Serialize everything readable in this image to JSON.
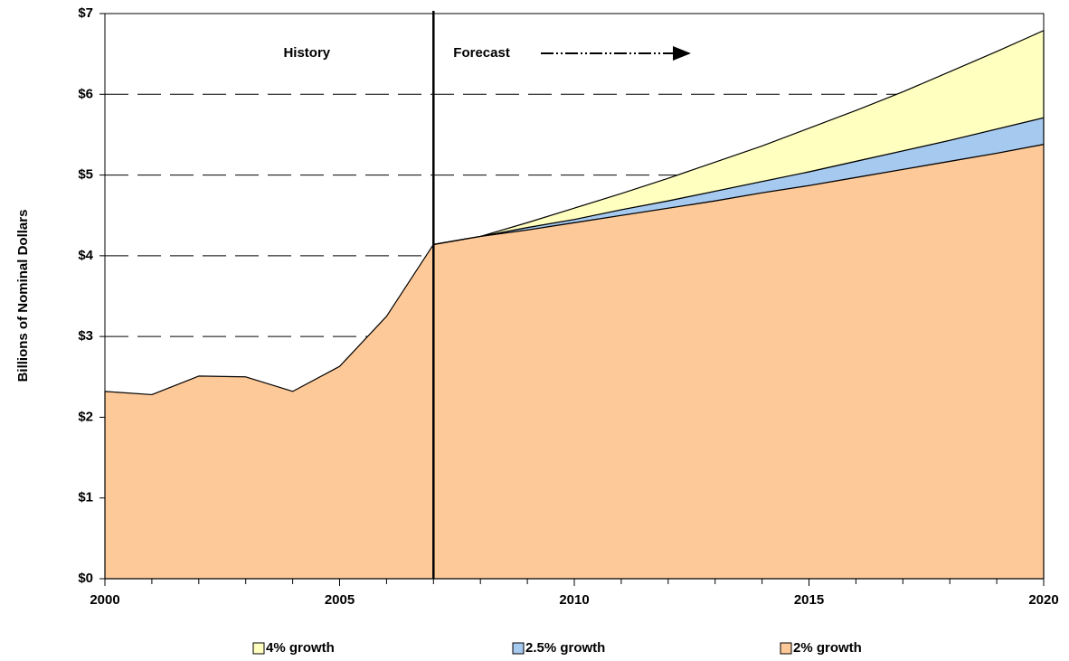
{
  "chart_data": {
    "type": "stacked_area",
    "y_label": "Billions of Nominal Dollars",
    "x": [
      2000,
      2001,
      2002,
      2003,
      2004,
      2005,
      2006,
      2007,
      2008,
      2009,
      2010,
      2011,
      2012,
      2013,
      2014,
      2015,
      2016,
      2017,
      2018,
      2019,
      2020
    ],
    "series": [
      {
        "name": "2% growth",
        "color": "#fec998",
        "values": [
          2.32,
          2.28,
          2.51,
          2.5,
          2.32,
          2.63,
          3.25,
          4.14,
          4.24,
          4.32,
          4.41,
          4.5,
          4.59,
          4.68,
          4.78,
          4.87,
          4.97,
          5.07,
          5.17,
          5.27,
          5.38
        ]
      },
      {
        "name": "2.5% growth",
        "color": "#a6c9ef",
        "values": [
          null,
          null,
          null,
          null,
          null,
          null,
          null,
          0,
          0,
          0.03,
          0.04,
          0.07,
          0.09,
          0.12,
          0.14,
          0.17,
          0.2,
          0.23,
          0.26,
          0.3,
          0.33
        ]
      },
      {
        "name": "4% growth",
        "color": "#ffffc0",
        "values": [
          null,
          null,
          null,
          null,
          null,
          null,
          null,
          0,
          0,
          0.06,
          0.14,
          0.2,
          0.28,
          0.36,
          0.44,
          0.54,
          0.63,
          0.73,
          0.85,
          0.96,
          1.08
        ]
      }
    ],
    "xlim": [
      2000,
      2020
    ],
    "xticks": [
      2000,
      2005,
      2010,
      2015,
      2020
    ],
    "ylim": [
      0,
      7
    ],
    "yticks": [
      {
        "value": 0,
        "label": "$0"
      },
      {
        "value": 1,
        "label": "$1"
      },
      {
        "value": 2,
        "label": "$2"
      },
      {
        "value": 3,
        "label": "$3"
      },
      {
        "value": 4,
        "label": "$4"
      },
      {
        "value": 5,
        "label": "$5"
      },
      {
        "value": 6,
        "label": "$6"
      },
      {
        "value": 7,
        "label": "$7"
      }
    ],
    "grid": true,
    "divider": {
      "x": 2007,
      "left_label": "History",
      "right_label": "Forecast"
    },
    "legend": "bottom"
  }
}
